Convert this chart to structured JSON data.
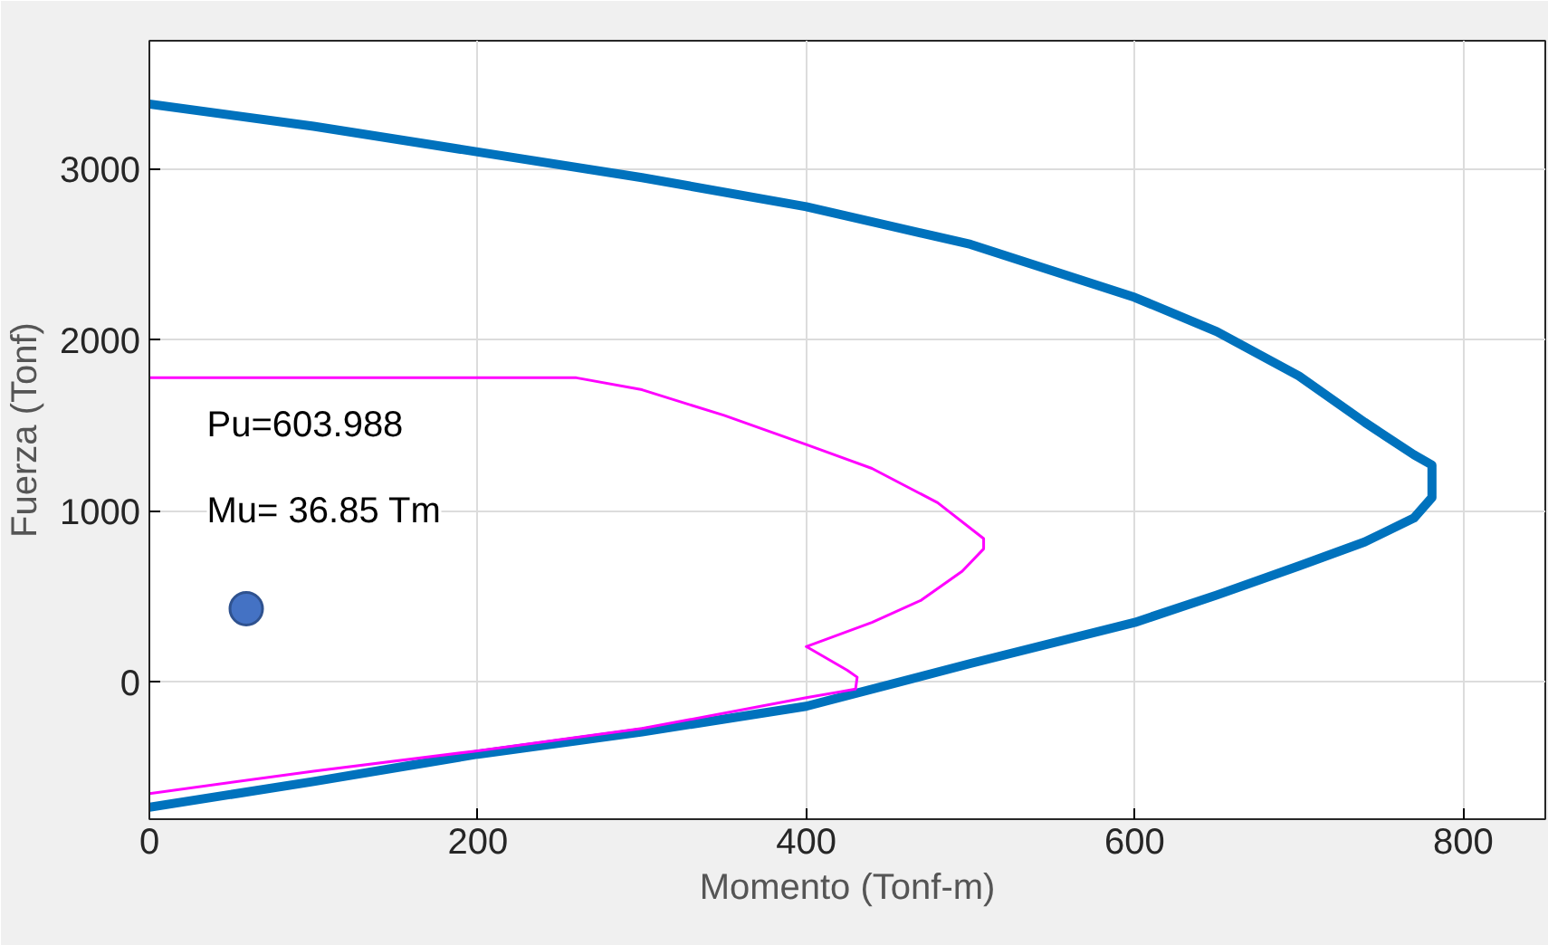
{
  "chart_data": {
    "type": "line",
    "xlabel": "Momento (Tonf-m)",
    "ylabel": "Fuerza (Tonf)",
    "xlim": [
      0,
      850
    ],
    "ylim": [
      -800,
      3750
    ],
    "xticks": [
      0,
      200,
      400,
      600,
      800
    ],
    "yticks": [
      0,
      1000,
      2000,
      3000
    ],
    "grid": true,
    "annotations": [
      "Pu=603.988",
      "Mu= 36.85 Tm"
    ],
    "series": [
      {
        "color": "#0072bd",
        "x": [
          0,
          100,
          200,
          300,
          400,
          500,
          600,
          650,
          700,
          740,
          770,
          781,
          781,
          770,
          740,
          700,
          650,
          600,
          500,
          400,
          300,
          200,
          100,
          0
        ],
        "values": [
          3380,
          3250,
          3100,
          2950,
          2780,
          2560,
          2250,
          2050,
          1790,
          1520,
          1330,
          1270,
          1080,
          960,
          820,
          680,
          510,
          350,
          110,
          -140,
          -290,
          -420,
          -580,
          -730
        ]
      },
      {
        "color": "#ff00ff",
        "x": [
          0,
          100,
          200,
          300,
          400,
          430,
          431,
          425,
          400,
          440,
          470,
          495,
          508,
          508,
          480,
          440,
          400,
          350,
          300,
          260,
          0
        ],
        "values": [
          -650,
          -520,
          -400,
          -270,
          -90,
          -40,
          30,
          70,
          209,
          350,
          480,
          650,
          780,
          840,
          1050,
          1250,
          1390,
          1560,
          1710,
          1780,
          1780
        ]
      },
      {
        "type": "scatter",
        "color": "#4472c4",
        "marker": "circle",
        "x": [
          59
        ],
        "values": [
          430
        ]
      }
    ]
  }
}
